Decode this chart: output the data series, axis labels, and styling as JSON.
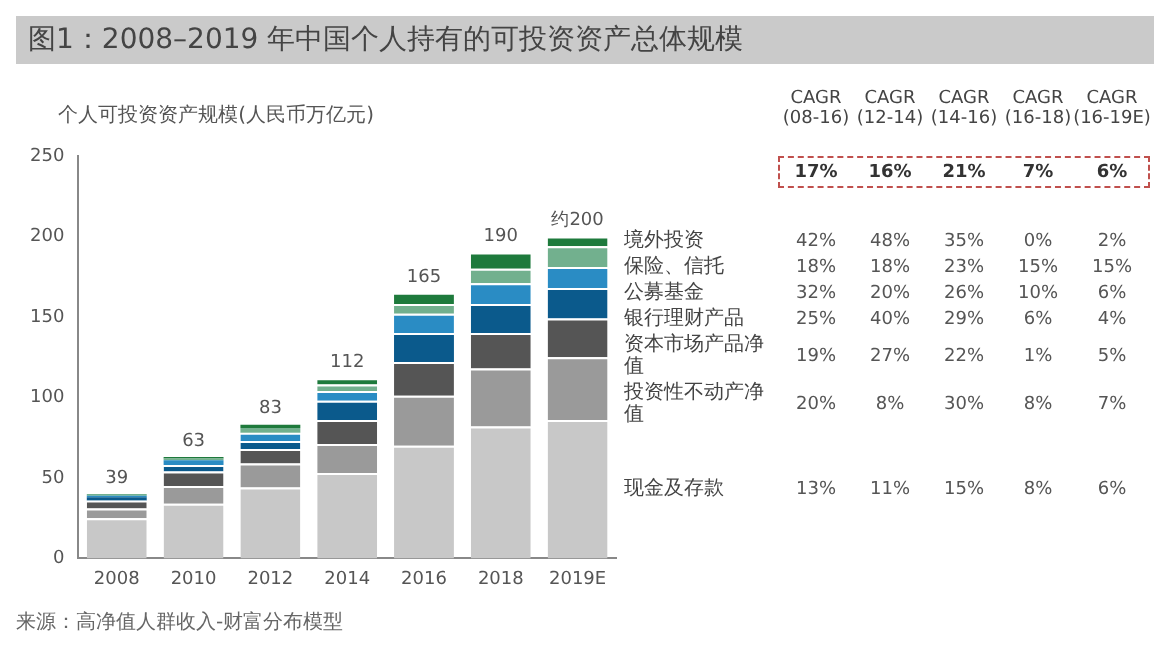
{
  "chart_data": {
    "type": "bar",
    "title": "图1：2008–2019 年中国个人持有的可投资资产总体规模",
    "ylabel": "个人可投资资产规模(人民币万亿元)",
    "categories": [
      "2008",
      "2010",
      "2012",
      "2014",
      "2016",
      "2018",
      "2019E"
    ],
    "stacked": true,
    "ylim": [
      0,
      250
    ],
    "yticks": [
      0,
      50,
      100,
      150,
      200,
      250
    ],
    "grid": false,
    "legend": false,
    "totals": [
      "39",
      "63",
      "83",
      "112",
      "165",
      "190",
      "约200"
    ],
    "series": [
      {
        "name": "现金及存款",
        "color": "#c8c8c8",
        "values": [
          25,
          34,
          44,
          53,
          70,
          82,
          86
        ]
      },
      {
        "name": "投资性不动产净值",
        "color": "#9a9a9a",
        "values": [
          6,
          11,
          15,
          18,
          31,
          36,
          39
        ]
      },
      {
        "name": "资本市场产品净值",
        "color": "#555555",
        "values": [
          5,
          9,
          9,
          15,
          21,
          22,
          24
        ]
      },
      {
        "name": "银行理财产品",
        "color": "#0b5a8c",
        "values": [
          2,
          4,
          5,
          12,
          18,
          18,
          19
        ]
      },
      {
        "name": "公募基金",
        "color": "#2a8cc4",
        "values": [
          1,
          3,
          5,
          6,
          12,
          13,
          13
        ]
      },
      {
        "name": "保险、信托",
        "color": "#72b08e",
        "values": [
          1,
          1,
          3,
          4,
          6,
          9,
          13
        ]
      },
      {
        "name": "境外投资",
        "color": "#1e7a3c",
        "values": [
          0,
          1,
          2,
          4,
          7,
          10,
          6
        ]
      }
    ],
    "annotations": [
      "CAGR (08-16)",
      "CAGR (12-14)",
      "CAGR (14-16)",
      "CAGR (16-18)",
      "CAGR (16-19E)",
      "17%",
      "16%",
      "21%",
      "7%",
      "6%",
      "42%",
      "48%",
      "35%",
      "0%",
      "2%",
      "18%",
      "18%",
      "23%",
      "15%",
      "15%",
      "32%",
      "20%",
      "26%",
      "10%",
      "6%",
      "25%",
      "40%",
      "29%",
      "6%",
      "4%",
      "19%",
      "27%",
      "22%",
      "1%",
      "5%",
      "20%",
      "8%",
      "30%",
      "8%",
      "7%",
      "13%",
      "11%",
      "15%",
      "8%",
      "6%",
      "来源：高净值人群收入-财富分布模型"
    ]
  }
}
